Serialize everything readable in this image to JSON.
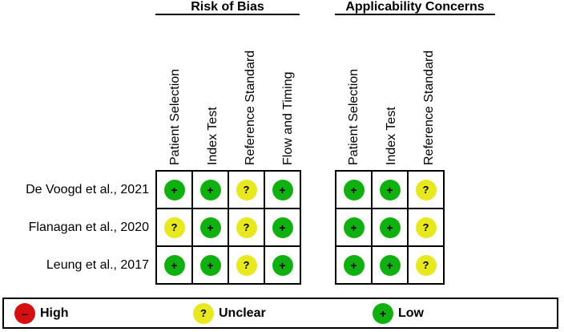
{
  "groups": {
    "risk_of_bias": "Risk of Bias",
    "applicability": "Applicability Concerns"
  },
  "risk_columns": [
    "Patient Selection",
    "Index Test",
    "Reference Standard",
    "Flow and Timing"
  ],
  "applicability_columns": [
    "Patient Selection",
    "Index Test",
    "Reference Standard"
  ],
  "studies": [
    {
      "name": "De Voogd et al., 2021",
      "risk": [
        "low",
        "low",
        "unclear",
        "low"
      ],
      "applicability": [
        "low",
        "low",
        "unclear"
      ]
    },
    {
      "name": "Flanagan et al., 2020",
      "risk": [
        "unclear",
        "low",
        "unclear",
        "low"
      ],
      "applicability": [
        "low",
        "low",
        "unclear"
      ]
    },
    {
      "name": "Leung et al., 2017",
      "risk": [
        "low",
        "low",
        "unclear",
        "low"
      ],
      "applicability": [
        "low",
        "low",
        "unclear"
      ]
    }
  ],
  "symbols": {
    "low": "+",
    "unclear": "?",
    "high": "–"
  },
  "legend": {
    "high": "High",
    "unclear": "Unclear",
    "low": "Low"
  },
  "colors": {
    "low": "#11b011",
    "unclear": "#e8e820",
    "high": "#d41010"
  }
}
